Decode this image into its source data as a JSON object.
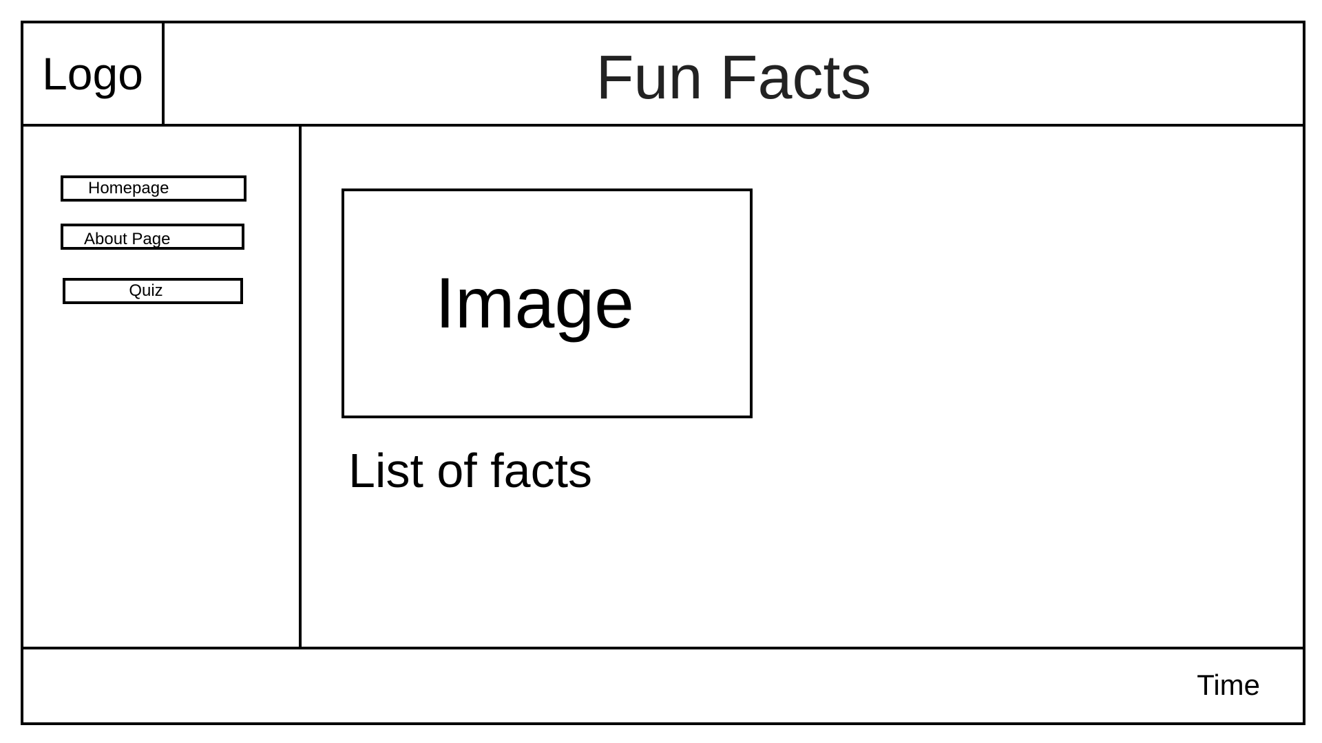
{
  "header": {
    "logo": "Logo",
    "title": "Fun Facts"
  },
  "sidebar": {
    "items": [
      {
        "label": "Homepage"
      },
      {
        "label": "About Page"
      },
      {
        "label": "Quiz"
      }
    ]
  },
  "main": {
    "image_placeholder": "Image",
    "facts_heading": "List of facts"
  },
  "footer": {
    "time": "Time"
  }
}
